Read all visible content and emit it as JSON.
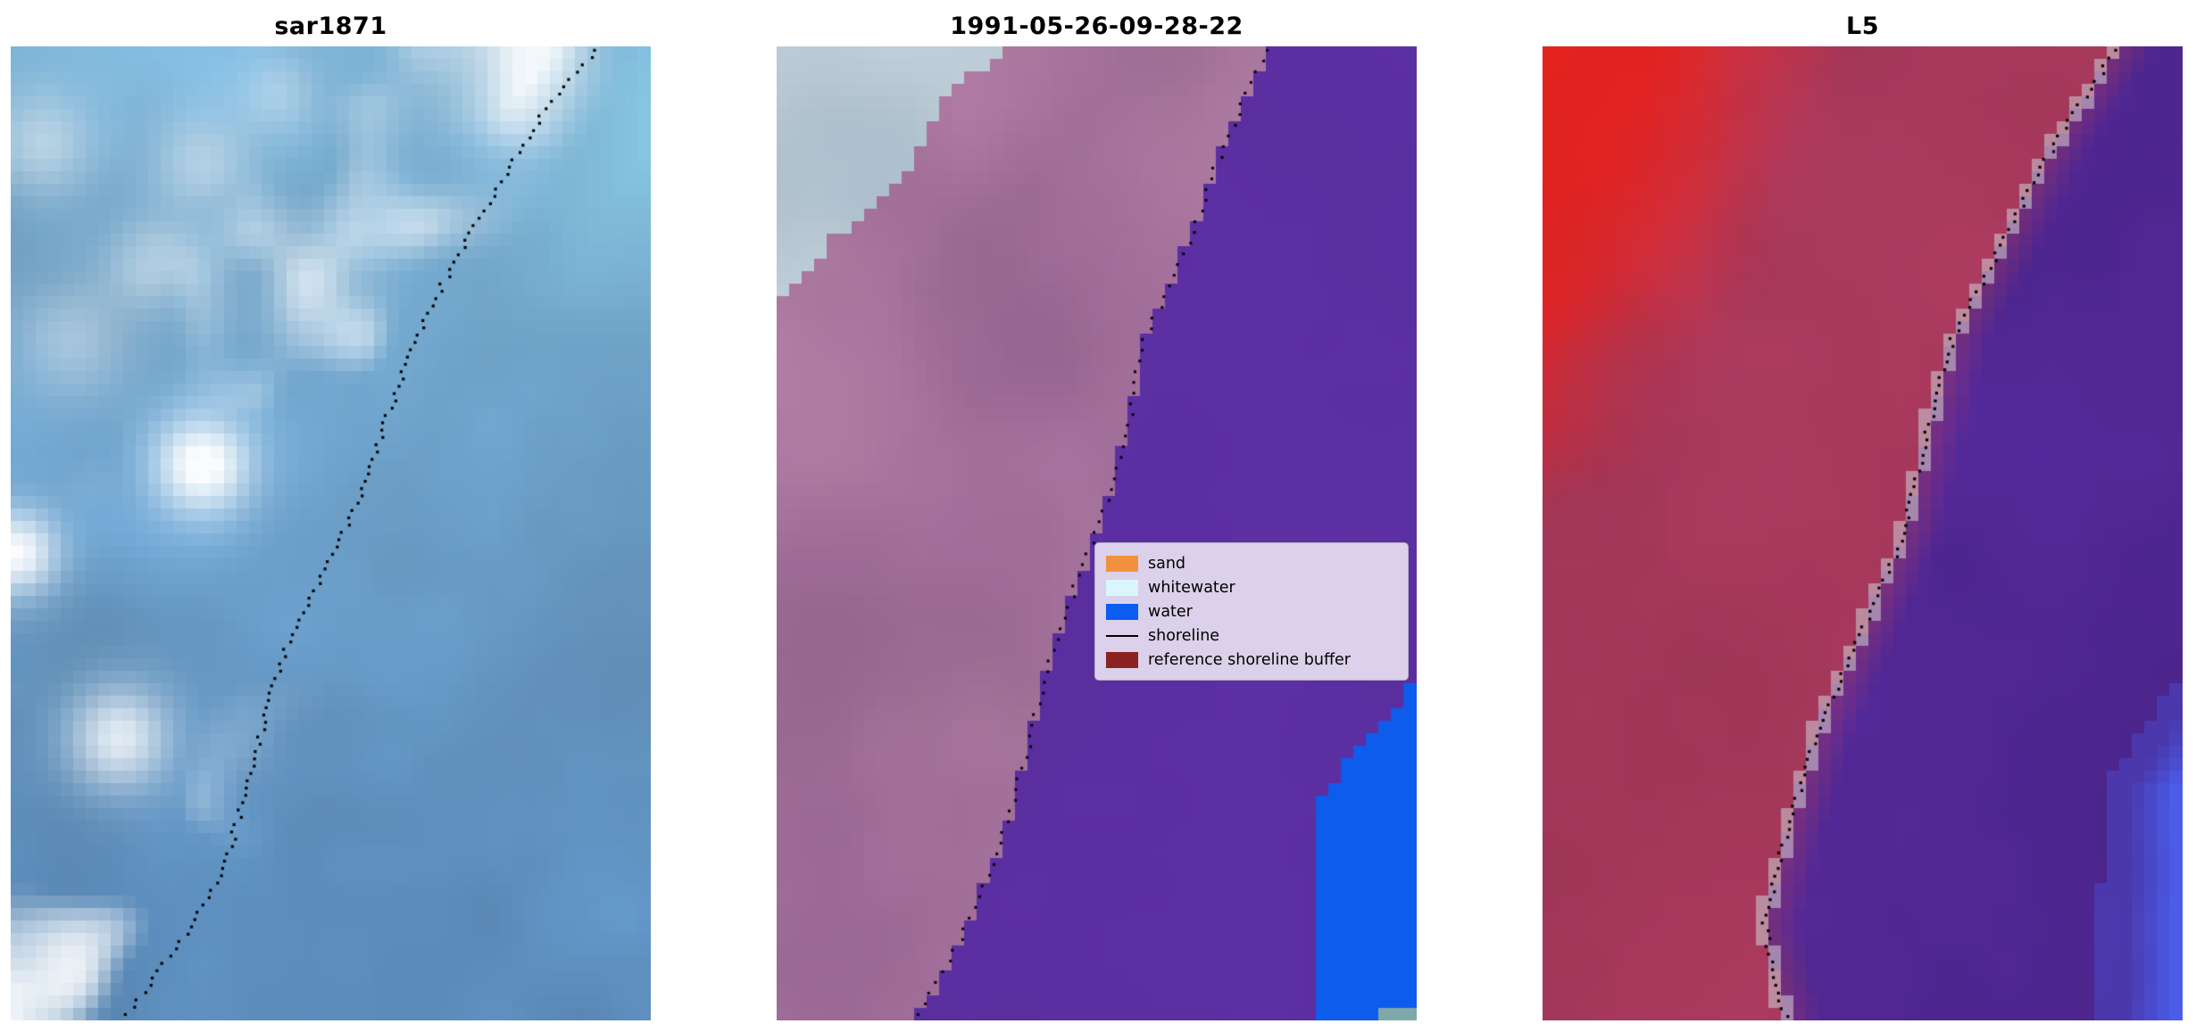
{
  "figure": {
    "background": "#ffffff"
  },
  "panels": [
    {
      "title": "sar1871",
      "type": "sar",
      "shore": [
        [
          0,
          0.92
        ],
        [
          0.07,
          0.83
        ],
        [
          0.15,
          0.755
        ],
        [
          0.25,
          0.67
        ],
        [
          0.33,
          0.615
        ],
        [
          0.4,
          0.578
        ],
        [
          0.46,
          0.55
        ],
        [
          0.52,
          0.505
        ],
        [
          0.6,
          0.44
        ],
        [
          0.68,
          0.4
        ],
        [
          0.76,
          0.37
        ],
        [
          0.84,
          0.335
        ],
        [
          0.92,
          0.265
        ],
        [
          1,
          0.175
        ]
      ],
      "palette": {
        "water_top": "#7db3d6",
        "water_bottom": "#5c8cba",
        "cloud": "#ffffff",
        "cyan": "#8fd7ea"
      }
    },
    {
      "title": "1991-05-26-09-28-22",
      "type": "class",
      "shore": [
        [
          0,
          0.77
        ],
        [
          0.1,
          0.7
        ],
        [
          0.2,
          0.645
        ],
        [
          0.3,
          0.575
        ],
        [
          0.4,
          0.545
        ],
        [
          0.5,
          0.5
        ],
        [
          0.6,
          0.44
        ],
        [
          0.7,
          0.4
        ],
        [
          0.8,
          0.36
        ],
        [
          0.9,
          0.3
        ],
        [
          1,
          0.22
        ]
      ],
      "palette": {
        "bare_light": "#ccd9e1",
        "bare_dark": "#8ba3b6",
        "land": "#92608f",
        "land_light": "#b27fa4",
        "water_buffer": "#5c2fa2",
        "water": "#0e5cec",
        "teal": "#7fa8a8"
      }
    },
    {
      "title": "L5",
      "type": "l5",
      "shore": [
        [
          0,
          0.9
        ],
        [
          0.1,
          0.8
        ],
        [
          0.2,
          0.72
        ],
        [
          0.3,
          0.64
        ],
        [
          0.4,
          0.6
        ],
        [
          0.5,
          0.565
        ],
        [
          0.6,
          0.5
        ],
        [
          0.7,
          0.43
        ],
        [
          0.8,
          0.385
        ],
        [
          0.9,
          0.345
        ],
        [
          1,
          0.38
        ]
      ],
      "palette": {
        "red_bright": "#ea2420",
        "crimson": "#a93a5e",
        "purple": "#5a2ba0",
        "purple_dark": "#452383",
        "blue": "#4a5ce8",
        "edge": "#cdced6"
      }
    }
  ],
  "legend": {
    "items": [
      {
        "label": "sand",
        "swatch": "#f2913d",
        "kind": "patch"
      },
      {
        "label": "whitewater",
        "swatch": "#d9f6fc",
        "kind": "patch"
      },
      {
        "label": "water",
        "swatch": "#0b5cf0",
        "kind": "patch"
      },
      {
        "label": "shoreline",
        "swatch": "#000000",
        "kind": "line"
      },
      {
        "label": "reference shoreline buffer",
        "swatch": "#8b2222",
        "kind": "patch"
      }
    ]
  },
  "shoreline": {
    "color": "#000000"
  },
  "chart_data": {
    "type": "image",
    "panels": [
      {
        "title": "sar1871",
        "content": "SAR satellite image in blue and white tones with dotted detected shoreline overlay running diagonally from top-right to bottom-left"
      },
      {
        "title": "1991-05-26-09-28-22",
        "content": "Classified satellite image: reference shoreline buffer (dark red, semi-transparent) over land appears mauve and over water appears purple; unbuffered water bright blue at lower right; grey-blue unclassified corner top-left; legend overlay",
        "legend": [
          "sand",
          "whitewater",
          "water",
          "shoreline",
          "reference shoreline buffer"
        ]
      },
      {
        "title": "L5",
        "content": "Landsat 5 false-colour image: bright red land at upper left fading to crimson, purple water on the right, blue patch at lower right, dotted shoreline overlay"
      }
    ]
  }
}
